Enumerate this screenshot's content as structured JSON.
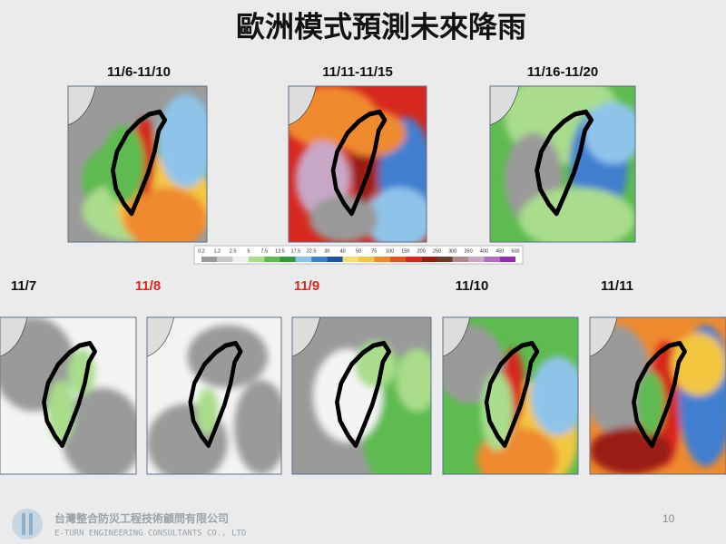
{
  "header": {
    "title": "歐洲模式預測未來降雨"
  },
  "top_maps": [
    {
      "label": "11/6-11/10"
    },
    {
      "label": "11/11-11/15"
    },
    {
      "label": "11/16-11/20"
    }
  ],
  "colorbar": {
    "ticks": [
      "0.2",
      "1.2",
      "2.5",
      "5",
      "7.5",
      "12.5",
      "17.5",
      "22.5",
      "30",
      "40",
      "50",
      "75",
      "100",
      "150",
      "200",
      "250",
      "300",
      "350",
      "400",
      "450",
      "500"
    ]
  },
  "daily_maps": [
    {
      "label": "11/7"
    },
    {
      "label": "11/8"
    },
    {
      "label": "11/9"
    },
    {
      "label": "11/10"
    },
    {
      "label": "11/11"
    }
  ],
  "footer": {
    "company": "台灣整合防災工程技術顧問有限公司",
    "company_en": "E-TURN ENGINEERING CONSULTANTS CO., LTD",
    "page": "10"
  }
}
